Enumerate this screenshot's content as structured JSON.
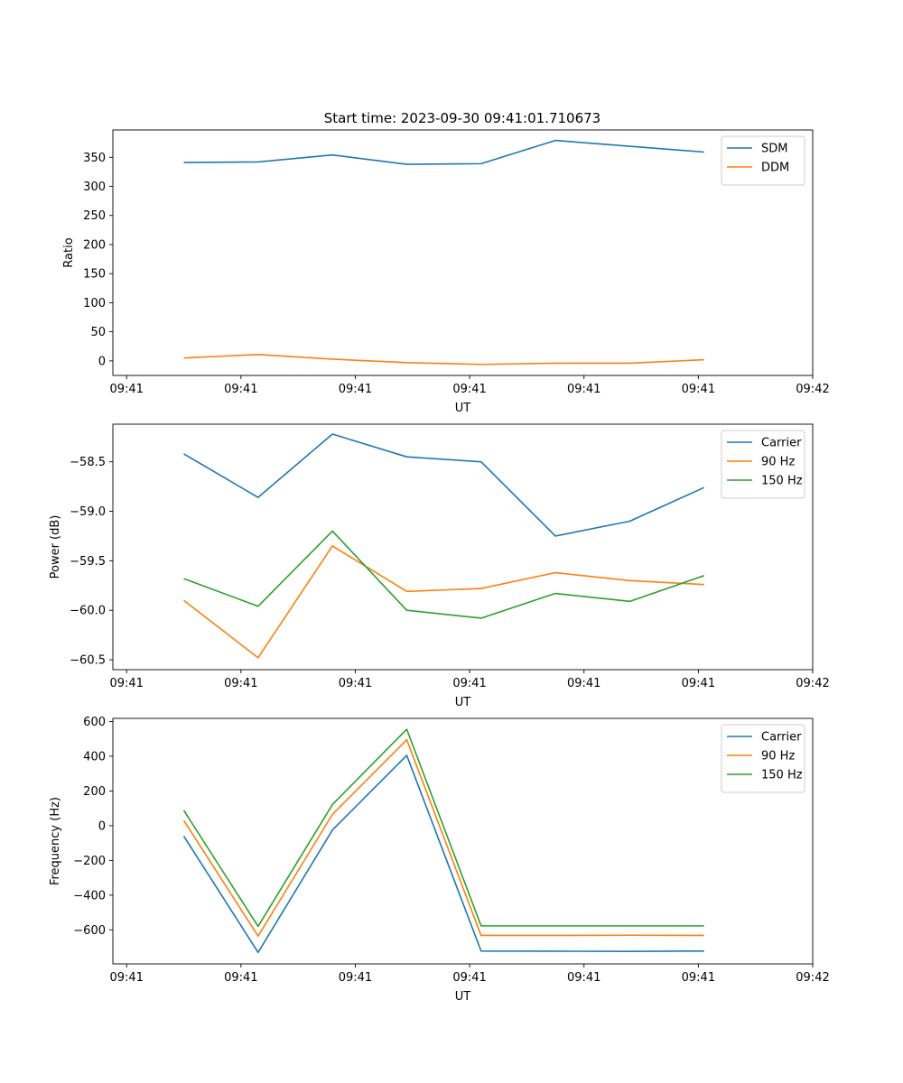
{
  "figure_title": "Start time: 2023-09-30 09:41:01.710673",
  "chart_data": [
    {
      "type": "line",
      "title": "Start time: 2023-09-30 09:41:01.710673",
      "xlabel": "UT",
      "ylabel": "Ratio",
      "x_ticks": [
        "09:41",
        "09:41",
        "09:41",
        "09:41",
        "09:41",
        "09:41",
        "09:42"
      ],
      "x_tick_positions": [
        0,
        1,
        2,
        3,
        4,
        5,
        6
      ],
      "xlim": [
        -0.12,
        6.0
      ],
      "ylim": [
        -25,
        397
      ],
      "y_ticks": [
        0,
        50,
        100,
        150,
        200,
        250,
        300,
        350
      ],
      "y_tick_labels": [
        "0",
        "50",
        "100",
        "150",
        "200",
        "250",
        "300",
        "350"
      ],
      "grid": false,
      "legend": "top-right",
      "x": [
        0.5,
        1.15,
        1.8,
        2.45,
        3.1,
        3.75,
        4.4,
        5.05
      ],
      "series": [
        {
          "name": "SDM",
          "color": "#1f77b4",
          "values": [
            341,
            342,
            354,
            338,
            339,
            379,
            369,
            359
          ]
        },
        {
          "name": "DDM",
          "color": "#ff7f0e",
          "values": [
            5,
            11,
            3,
            -3,
            -6,
            -4,
            -4,
            2
          ]
        }
      ]
    },
    {
      "type": "line",
      "title": "",
      "xlabel": "UT",
      "ylabel": "Power (dB)",
      "x_ticks": [
        "09:41",
        "09:41",
        "09:41",
        "09:41",
        "09:41",
        "09:41",
        "09:42"
      ],
      "x_tick_positions": [
        0,
        1,
        2,
        3,
        4,
        5,
        6
      ],
      "xlim": [
        -0.12,
        6.0
      ],
      "ylim": [
        -60.6,
        -58.12
      ],
      "y_ticks": [
        -60.5,
        -60.0,
        -59.5,
        -59.0,
        -58.5
      ],
      "y_tick_labels": [
        "−60.5",
        "−60.0",
        "−59.5",
        "−59.0",
        "−58.5"
      ],
      "grid": false,
      "legend": "top-right",
      "x": [
        0.5,
        1.15,
        1.8,
        2.45,
        3.1,
        3.75,
        4.4,
        5.05
      ],
      "series": [
        {
          "name": "Carrier",
          "color": "#1f77b4",
          "values": [
            -58.42,
            -58.86,
            -58.22,
            -58.45,
            -58.5,
            -59.25,
            -59.1,
            -58.76
          ]
        },
        {
          "name": "90 Hz",
          "color": "#ff7f0e",
          "values": [
            -59.9,
            -60.48,
            -59.35,
            -59.81,
            -59.78,
            -59.62,
            -59.7,
            -59.74
          ]
        },
        {
          "name": "150 Hz",
          "color": "#2ca02c",
          "values": [
            -59.68,
            -59.96,
            -59.2,
            -60.0,
            -60.08,
            -59.83,
            -59.91,
            -59.65
          ]
        }
      ]
    },
    {
      "type": "line",
      "title": "",
      "xlabel": "UT",
      "ylabel": "Frequency (Hz)",
      "x_ticks": [
        "09:41",
        "09:41",
        "09:41",
        "09:41",
        "09:41",
        "09:41",
        "09:42"
      ],
      "x_tick_positions": [
        0,
        1,
        2,
        3,
        4,
        5,
        6
      ],
      "xlim": [
        -0.12,
        6.0
      ],
      "ylim": [
        -796,
        618
      ],
      "y_ticks": [
        -600,
        -400,
        -200,
        0,
        200,
        400,
        600
      ],
      "y_tick_labels": [
        "−600",
        "−400",
        "−200",
        "0",
        "200",
        "400",
        "600"
      ],
      "grid": false,
      "legend": "top-right",
      "x": [
        0.5,
        1.15,
        1.8,
        2.45,
        3.1,
        3.75,
        4.4,
        5.05
      ],
      "series": [
        {
          "name": "Carrier",
          "color": "#1f77b4",
          "values": [
            -60,
            -730,
            -25,
            405,
            -722,
            -723,
            -724,
            -722
          ]
        },
        {
          "name": "90 Hz",
          "color": "#ff7f0e",
          "values": [
            30,
            -636,
            65,
            495,
            -632,
            -632,
            -631,
            -632
          ]
        },
        {
          "name": "150 Hz",
          "color": "#2ca02c",
          "values": [
            88,
            -580,
            122,
            555,
            -577,
            -577,
            -577,
            -577
          ]
        }
      ]
    }
  ]
}
